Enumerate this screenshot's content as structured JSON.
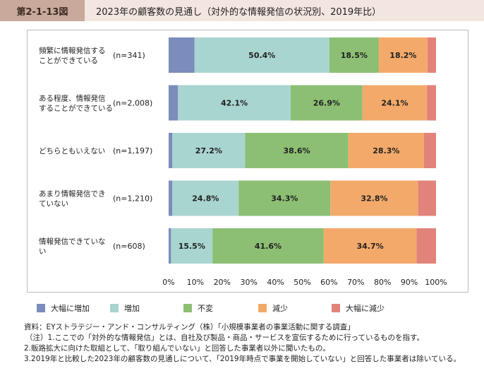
{
  "header": {
    "figure_label": "第2-1-13図",
    "title": "2023年の顧客数の見通し（対外的な情報発信の状況別、2019年比）"
  },
  "colors": {
    "large_increase": "#7b8cbd",
    "increase": "#a8d5cf",
    "unchanged": "#8cbf73",
    "decrease": "#f3a96a",
    "large_decrease": "#e2837b"
  },
  "chart_data": {
    "type": "bar",
    "orientation": "horizontal",
    "stacked": true,
    "xlim": [
      0,
      100
    ],
    "xticks": [
      "0%",
      "10%",
      "20%",
      "30%",
      "40%",
      "50%",
      "60%",
      "70%",
      "80%",
      "90%",
      "100%"
    ],
    "grid": false,
    "legend_position": "bottom",
    "categories": [
      {
        "label_lines": [
          "頻繁に情報発信する",
          "ことができている"
        ],
        "n": "(n=341)"
      },
      {
        "label_lines": [
          "ある程度、情報発信",
          "することができている"
        ],
        "n": "(n=2,008)"
      },
      {
        "label_lines": [
          "どちらともいえない"
        ],
        "n": "(n=1,197)"
      },
      {
        "label_lines": [
          "あまり情報発信でき",
          "ていない"
        ],
        "n": "(n=1,210)"
      },
      {
        "label_lines": [
          "情報発信できていな",
          "い"
        ],
        "n": "(n=608)"
      }
    ],
    "series": [
      {
        "name": "大幅に増加",
        "color_key": "large_increase",
        "values": [
          9.7,
          3.5,
          1.4,
          1.4,
          0.9
        ],
        "labels": [
          "",
          "",
          "",
          "",
          ""
        ]
      },
      {
        "name": "増加",
        "color_key": "increase",
        "values": [
          50.4,
          42.1,
          27.2,
          24.8,
          15.5
        ],
        "labels": [
          "50.4%",
          "42.1%",
          "27.2%",
          "24.8%",
          "15.5%"
        ]
      },
      {
        "name": "不変",
        "color_key": "unchanged",
        "values": [
          18.5,
          26.9,
          38.6,
          34.3,
          41.6
        ],
        "labels": [
          "18.5%",
          "26.9%",
          "38.6%",
          "34.3%",
          "41.6%"
        ]
      },
      {
        "name": "減少",
        "color_key": "decrease",
        "values": [
          18.2,
          24.1,
          28.3,
          32.8,
          34.7
        ],
        "labels": [
          "18.2%",
          "24.1%",
          "28.3%",
          "32.8%",
          "34.7%"
        ]
      },
      {
        "name": "大幅に減少",
        "color_key": "large_decrease",
        "values": [
          3.2,
          3.4,
          4.5,
          6.7,
          7.3
        ],
        "labels": [
          "",
          "",
          "",
          "",
          ""
        ]
      }
    ]
  },
  "notes": {
    "source": "資料：EYストラテジー・アンド・コンサルティング（株）「小規模事業者の事業活動に関する調査」",
    "note1": "（注）1.ここでの「対外的な情報発信」とは、自社及び製品・商品・サービスを宣伝するために行っているものを指す。",
    "note2": "2.販路拡大に向けた取組として、「取り組んでいない」と回答した事業者以外に聞いたもの。",
    "note3": "3.2019年と比較した2023年の顧客数の見通しについて、「2019年時点で事業を開始していない」と回答した事業者は除いている。"
  }
}
